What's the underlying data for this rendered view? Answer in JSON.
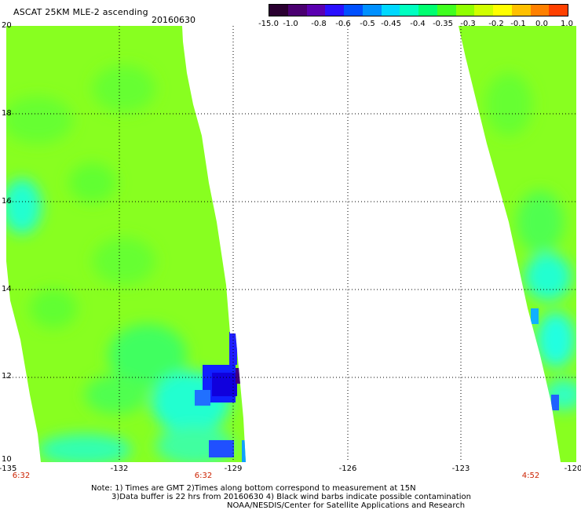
{
  "header": {
    "title": "ASCAT 25KM MLE-2 ascending",
    "date": "20160630"
  },
  "colorbar": {
    "labels": [
      "-15.0",
      "-1.0",
      "-0.8",
      "-0.6",
      "-0.5",
      "-0.45",
      "-0.4",
      "-0.35",
      "-0.3",
      "-0.2",
      "-0.1",
      "0.0",
      "1.0"
    ],
    "colors": [
      "#2a0030",
      "#4a0070",
      "#5a00b0",
      "#2a10ff",
      "#0050ff",
      "#0090ff",
      "#00d8ff",
      "#00ffc0",
      "#00ff70",
      "#40ff20",
      "#90ff00",
      "#d0ff00",
      "#ffff00",
      "#ffc000",
      "#ff8000",
      "#ff4000"
    ]
  },
  "map": {
    "lat_labels": [
      "20",
      "18",
      "16",
      "14",
      "12",
      "10"
    ],
    "lon_labels": [
      "-135",
      "-132",
      "-129",
      "-126",
      "-123",
      "-120"
    ],
    "time_labels": [
      "6:32",
      "6:32",
      "4:52"
    ],
    "colors": {
      "background_swath": "#88ff20",
      "green_mid": "#60ff30",
      "cyan": "#20ffe0",
      "blue": "#1818ff",
      "dark": "#400080",
      "grid": "#000000"
    }
  },
  "footer": {
    "line1": "Note: 1) Times are GMT 2)Times along bottom correspond to measurement at 15N",
    "line2": "3)Data buffer is 22 hrs from 20160630 4) Black wind barbs indicate possible contamination",
    "line3": "NOAA/NESDIS/Center for Satellite Applications and Research"
  }
}
